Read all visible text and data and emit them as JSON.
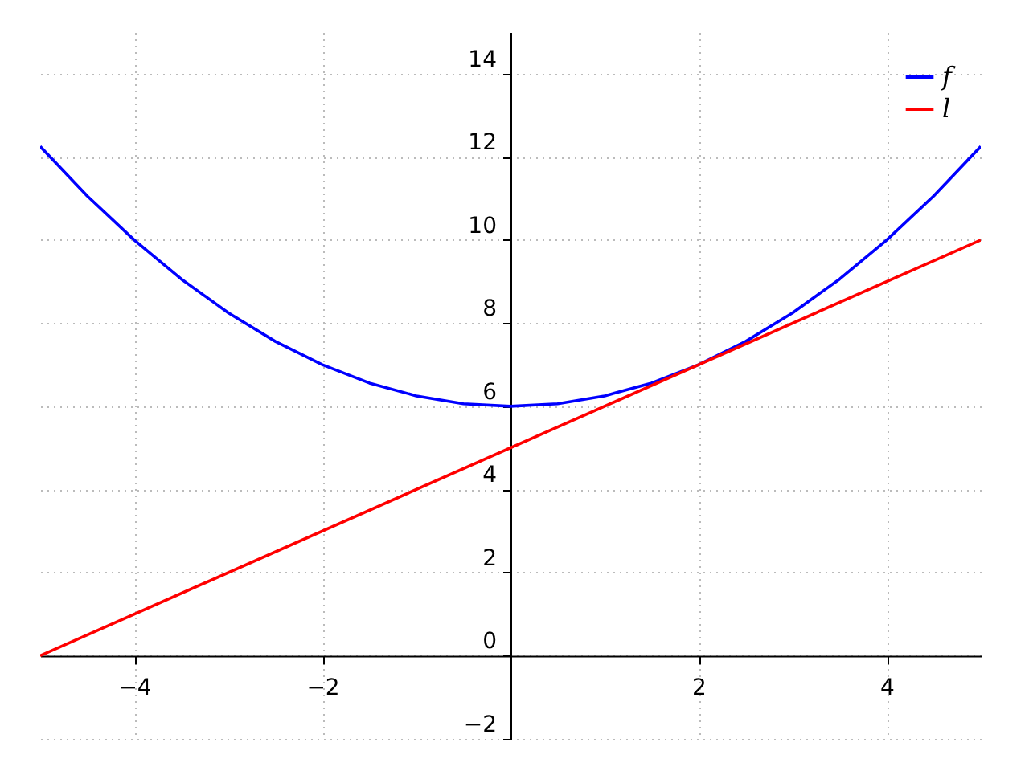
{
  "chart_data": {
    "type": "line",
    "series": [
      {
        "name": "f",
        "color": "#0000ff",
        "x": [
          -5,
          -4.5,
          -4,
          -3.5,
          -3,
          -2.5,
          -2,
          -1.5,
          -1,
          -0.5,
          0,
          0.5,
          1,
          1.5,
          2,
          2.5,
          3,
          3.5,
          4,
          4.5,
          5
        ],
        "values": [
          12.25,
          11.06,
          10,
          9.06,
          8.25,
          7.56,
          7,
          6.56,
          6.25,
          6.06,
          6,
          6.06,
          6.25,
          6.56,
          7,
          7.56,
          8.25,
          9.06,
          10,
          11.06,
          12.25
        ]
      },
      {
        "name": "l",
        "color": "#ff0000",
        "x": [
          -5,
          5
        ],
        "values": [
          0,
          10
        ]
      }
    ],
    "xlim": [
      -5,
      5
    ],
    "ylim": [
      -2,
      15
    ],
    "xticks": [
      -4,
      -2,
      2,
      4
    ],
    "yticks": [
      -2,
      0,
      2,
      4,
      6,
      8,
      10,
      12,
      14
    ],
    "grid": true,
    "legend": "top right",
    "line_style": "solid",
    "marker": "none"
  }
}
